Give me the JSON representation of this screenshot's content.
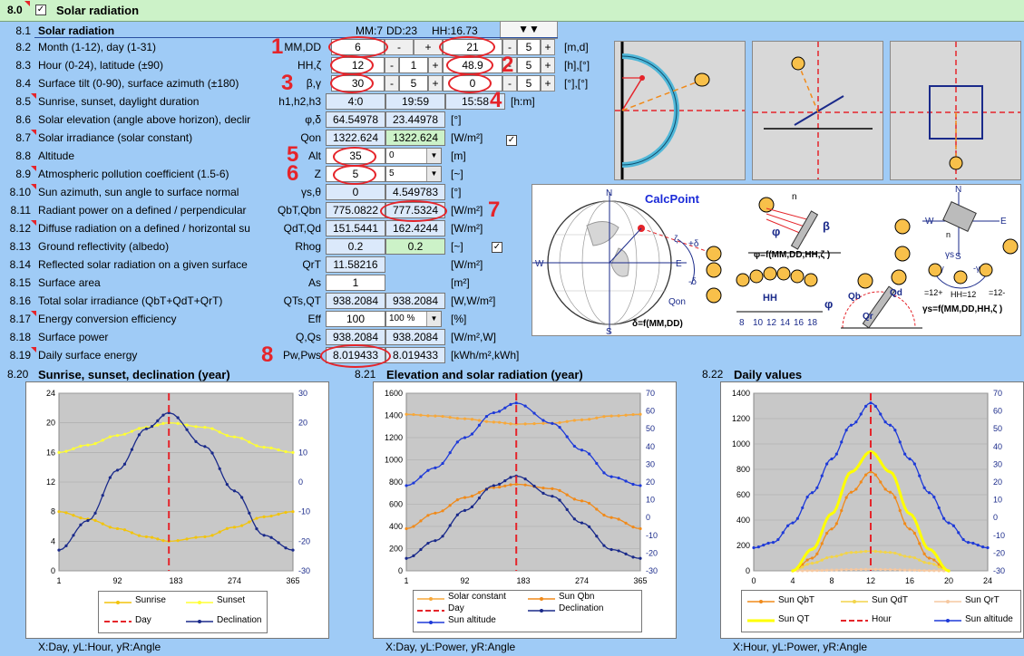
{
  "header": {
    "section": "8.0",
    "title": "Solar radiation",
    "checked": true
  },
  "top": {
    "row_num": "8.1",
    "title": "Solar radiation",
    "mm": "MM:7",
    "dd": "DD:23",
    "hh": "HH:16.73",
    "nav_button": "▼▼"
  },
  "rows": [
    {
      "num": "8.2",
      "label": "Month (1-12), day (1-31)",
      "sym": "MM,DD",
      "unit": "[m,d]"
    },
    {
      "num": "8.3",
      "label": "Hour (0-24), latitude (±90)",
      "sym": "HH,ζ",
      "unit": "[h],[°]"
    },
    {
      "num": "8.4",
      "label": "Surface tilt (0-90), surface azimuth (±180)",
      "sym": "β,γ",
      "unit": "[°],[°]"
    },
    {
      "num": "8.5",
      "label": "Sunrise, sunset, daylight duration",
      "sym": "h1,h2,h3",
      "unit": "[h:m]"
    },
    {
      "num": "8.6",
      "label": "Solar elevation (angle above horizon), declir",
      "sym": "φ,δ",
      "unit": "[°]"
    },
    {
      "num": "8.7",
      "label": "Solar irradiance (solar constant)",
      "sym": "Qon",
      "unit": "[W/m²]"
    },
    {
      "num": "8.8",
      "label": "Altitude",
      "sym": "Alt",
      "unit": "[m]"
    },
    {
      "num": "8.9",
      "label": "Atmospheric pollution coefficient (1.5-6)",
      "sym": "Z",
      "unit": "[~]"
    },
    {
      "num": "8.10",
      "label": "Sun azimuth, sun angle to surface normal",
      "sym": "γs,θ",
      "unit": "[°]"
    },
    {
      "num": "8.11",
      "label": "Radiant power on a defined / perpendicular",
      "sym": "QbT,Qbn",
      "unit": "[W/m²]"
    },
    {
      "num": "8.12",
      "label": "Diffuse radiation on a defined / horizontal su",
      "sym": "QdT,Qd",
      "unit": "[W/m²]"
    },
    {
      "num": "8.13",
      "label": "Ground reflectivity (albedo)",
      "sym": "Rhog",
      "unit": "[~]"
    },
    {
      "num": "8.14",
      "label": "Reflected solar radiation on a given surface",
      "sym": "QrT",
      "unit": "[W/m²]"
    },
    {
      "num": "8.15",
      "label": "Surface area",
      "sym": "As",
      "unit": "[m²]"
    },
    {
      "num": "8.16",
      "label": "Total solar irradiance (QbT+QdT+QrT)",
      "sym": "QTs,QT",
      "unit": "[W,W/m²]"
    },
    {
      "num": "8.17",
      "label": "Energy conversion efficiency",
      "sym": "Eff",
      "unit": "[%]"
    },
    {
      "num": "8.18",
      "label": "Surface power",
      "sym": "Q,Qs",
      "unit": "[W/m²,W]"
    },
    {
      "num": "8.19",
      "label": "Daily surface energy",
      "sym": "Pw,Pws",
      "unit": "[kWh/m²,kWh]"
    }
  ],
  "values": {
    "month": "6",
    "day": "21",
    "step1": "5",
    "hour": "12",
    "hour_step": "1",
    "latitude": "48.9",
    "step2": "5",
    "tilt": "30",
    "tilt_step": "5",
    "azimuth": "0",
    "step3": "5",
    "sunrise": "4:0",
    "sunset": "19:59",
    "daylight": "15:58",
    "elevation": "64.54978",
    "declination": "23.44978",
    "qon": "1322.624",
    "qon2": "1322.624",
    "alt": "35",
    "alt_sel": "0",
    "z": "5",
    "z_sel": "5",
    "sun_azimuth": "0",
    "sun_angle": "4.549783",
    "qbt": "775.0822",
    "qbn": "777.5324",
    "qdt": "151.5441",
    "qd": "162.4244",
    "rhog": "0.2",
    "rhog2": "0.2",
    "qrt": "11.58216",
    "area": "1",
    "qts": "938.2084",
    "qt": "938.2084",
    "eff": "100",
    "eff_sel": "100 %",
    "q": "938.2084",
    "qs": "938.2084",
    "pw": "8.019433",
    "pws": "8.019433"
  },
  "buttons": {
    "minus": "-",
    "plus": "+"
  },
  "callouts": [
    "1",
    "2",
    "3",
    "4",
    "5",
    "6",
    "7",
    "8"
  ],
  "diagram": {
    "calcpoint": "CalcPoint",
    "n": "N",
    "s": "S",
    "w": "W",
    "e": "E",
    "n2": "N",
    "s2": "S",
    "w2": "W",
    "e2": "E",
    "n_small": "n",
    "n_small2": "n",
    "zeta": "ζ",
    "plus_delta": "+δ",
    "minus_delta": "-δ",
    "qon": "Qon",
    "delta_f": "δ=f(MM,DD)",
    "phi": "φ",
    "beta": "β",
    "phi_f": "φ=f(MM,DD,HH,ζ )",
    "hh": "HH",
    "hh_ticks": [
      "8",
      "10",
      "12",
      "14",
      "16",
      "18"
    ],
    "phi2": "φ",
    "qb": "Qb",
    "qd": "Qd",
    "qr": "Qr",
    "gamma_s": "γs",
    "plus_gamma": "+γ",
    "minus_gamma": "-γ",
    "l12p": "=12+",
    "hh12": "HH=12",
    "l12m": "=12-",
    "gs_f": "γs=f(MM,DD,HH,ζ )"
  },
  "charts": [
    {
      "num": "8.20",
      "title": "Sunrise, sunset, declination (year)",
      "note": "X:Day, yL:Hour, yR:Angle",
      "yl_ticks": [
        "24",
        "20",
        "16",
        "12",
        "8",
        "4",
        "0"
      ],
      "yr_ticks": [
        "30",
        "20",
        "10",
        "0",
        "-10",
        "-20",
        "-30"
      ],
      "x_ticks": [
        "1",
        "92",
        "183",
        "274",
        "365"
      ],
      "legend": [
        "Sunrise",
        "Sunset",
        "Day",
        "Declination"
      ]
    },
    {
      "num": "8.21",
      "title": "Elevation and solar radiation (year)",
      "note": "X:Day, yL:Power, yR:Angle",
      "yl_ticks": [
        "1600",
        "1400",
        "1200",
        "1000",
        "800",
        "600",
        "400",
        "200",
        "0"
      ],
      "yr_ticks": [
        "70",
        "60",
        "50",
        "40",
        "30",
        "20",
        "10",
        "0",
        "-10",
        "-20",
        "-30"
      ],
      "x_ticks": [
        "1",
        "92",
        "183",
        "274",
        "365"
      ],
      "legend": [
        "Solar constant",
        "Sun Qbn",
        "Day",
        "Declination",
        "Sun altitude"
      ]
    },
    {
      "num": "8.22",
      "title": "Daily values",
      "note": "X:Hour, yL:Power, yR:Angle",
      "yl_ticks": [
        "1400",
        "1200",
        "1000",
        "800",
        "600",
        "400",
        "200",
        "0"
      ],
      "yr_ticks": [
        "70",
        "60",
        "50",
        "40",
        "30",
        "20",
        "10",
        "0",
        "-10",
        "-20",
        "-30"
      ],
      "x_ticks": [
        "0",
        "4",
        "8",
        "12",
        "16",
        "20",
        "24"
      ],
      "legend": [
        "Sun QbT",
        "Sun QdT",
        "Sun QrT",
        "Sun QT",
        "Hour",
        "Sun altitude"
      ]
    }
  ],
  "chart_data": [
    {
      "type": "line",
      "title": "Sunrise, sunset, declination (year)",
      "x_unit": "day",
      "series": [
        {
          "name": "Sunrise",
          "axis": "left",
          "x": [
            1,
            46,
            92,
            137,
            172,
            228,
            274,
            320,
            365
          ],
          "y": [
            8.0,
            7.0,
            5.7,
            4.6,
            4.0,
            4.6,
            5.9,
            7.3,
            8.0
          ]
        },
        {
          "name": "Sunset",
          "axis": "left",
          "x": [
            1,
            46,
            92,
            137,
            172,
            228,
            274,
            320,
            365
          ],
          "y": [
            16.0,
            17.0,
            18.3,
            19.4,
            20.0,
            19.4,
            18.1,
            16.7,
            16.0
          ]
        },
        {
          "name": "Declination",
          "axis": "right",
          "x": [
            1,
            46,
            92,
            137,
            172,
            228,
            274,
            320,
            365
          ],
          "y": [
            -23,
            -13,
            4,
            18,
            23.4,
            12,
            -3,
            -18,
            -23
          ]
        },
        {
          "name": "Day",
          "axis": "left",
          "x": [
            172,
            172
          ],
          "y": [
            0,
            24
          ]
        }
      ],
      "ylim_left": [
        0,
        24
      ],
      "ylim_right": [
        -30,
        30
      ],
      "xlim": [
        1,
        365
      ]
    },
    {
      "type": "line",
      "title": "Elevation and solar radiation (year)",
      "x_unit": "day",
      "series": [
        {
          "name": "Solar constant",
          "axis": "left",
          "x": [
            1,
            46,
            92,
            137,
            172,
            228,
            274,
            320,
            365
          ],
          "y": [
            1410,
            1395,
            1370,
            1340,
            1322,
            1330,
            1360,
            1395,
            1410
          ]
        },
        {
          "name": "Sun Qbn",
          "axis": "left",
          "x": [
            1,
            46,
            92,
            137,
            172,
            228,
            274,
            320,
            365
          ],
          "y": [
            380,
            520,
            660,
            750,
            780,
            740,
            630,
            480,
            380
          ]
        },
        {
          "name": "Declination",
          "axis": "right",
          "x": [
            1,
            46,
            92,
            137,
            172,
            228,
            274,
            320,
            365
          ],
          "y": [
            -23,
            -13,
            4,
            18,
            23.4,
            12,
            -3,
            -18,
            -23
          ]
        },
        {
          "name": "Sun altitude",
          "axis": "right",
          "x": [
            1,
            46,
            92,
            137,
            172,
            228,
            274,
            320,
            365
          ],
          "y": [
            18,
            28,
            45,
            59,
            64.5,
            53,
            38,
            23,
            18
          ]
        },
        {
          "name": "Day",
          "axis": "left",
          "x": [
            172,
            172
          ],
          "y": [
            0,
            1600
          ]
        }
      ],
      "ylim_left": [
        0,
        1600
      ],
      "ylim_right": [
        -30,
        70
      ],
      "xlim": [
        1,
        365
      ]
    },
    {
      "type": "line",
      "title": "Daily values",
      "x_unit": "hour",
      "series": [
        {
          "name": "Sun QbT",
          "axis": "left",
          "x": [
            4,
            6,
            8,
            10,
            12,
            14,
            16,
            18,
            20
          ],
          "y": [
            0,
            100,
            330,
            620,
            780,
            620,
            330,
            100,
            0
          ]
        },
        {
          "name": "Sun QdT",
          "axis": "left",
          "x": [
            4,
            6,
            8,
            10,
            12,
            14,
            16,
            18,
            20
          ],
          "y": [
            0,
            60,
            110,
            145,
            155,
            145,
            110,
            60,
            0
          ]
        },
        {
          "name": "Sun QrT",
          "axis": "left",
          "x": [
            4,
            6,
            8,
            10,
            12,
            14,
            16,
            18,
            20
          ],
          "y": [
            0,
            2,
            6,
            10,
            12,
            10,
            6,
            2,
            0
          ]
        },
        {
          "name": "Sun QT",
          "axis": "left",
          "x": [
            4,
            6,
            8,
            10,
            12,
            14,
            16,
            18,
            20
          ],
          "y": [
            0,
            170,
            450,
            780,
            940,
            780,
            450,
            170,
            0
          ]
        },
        {
          "name": "Sun altitude",
          "axis": "right",
          "x": [
            0,
            2,
            4,
            6,
            8,
            10,
            12,
            14,
            16,
            18,
            20,
            22,
            24
          ],
          "y": [
            -17,
            -14,
            -3,
            14,
            33,
            52,
            64.5,
            52,
            33,
            14,
            -3,
            -14,
            -17
          ]
        },
        {
          "name": "Hour",
          "axis": "left",
          "x": [
            12,
            12
          ],
          "y": [
            0,
            1400
          ]
        }
      ],
      "ylim_left": [
        0,
        1400
      ],
      "ylim_right": [
        -30,
        70
      ],
      "xlim": [
        0,
        24
      ]
    }
  ],
  "colors": {
    "bg": "#9fcbf6",
    "header": "#ccf2c8",
    "accent_red": "#e5242a",
    "sunrise": "#f2c40c",
    "sunset": "#ffff33",
    "declination": "#1a2a8a",
    "orange": "#f08a1a",
    "altitude": "#1e3ad8"
  }
}
